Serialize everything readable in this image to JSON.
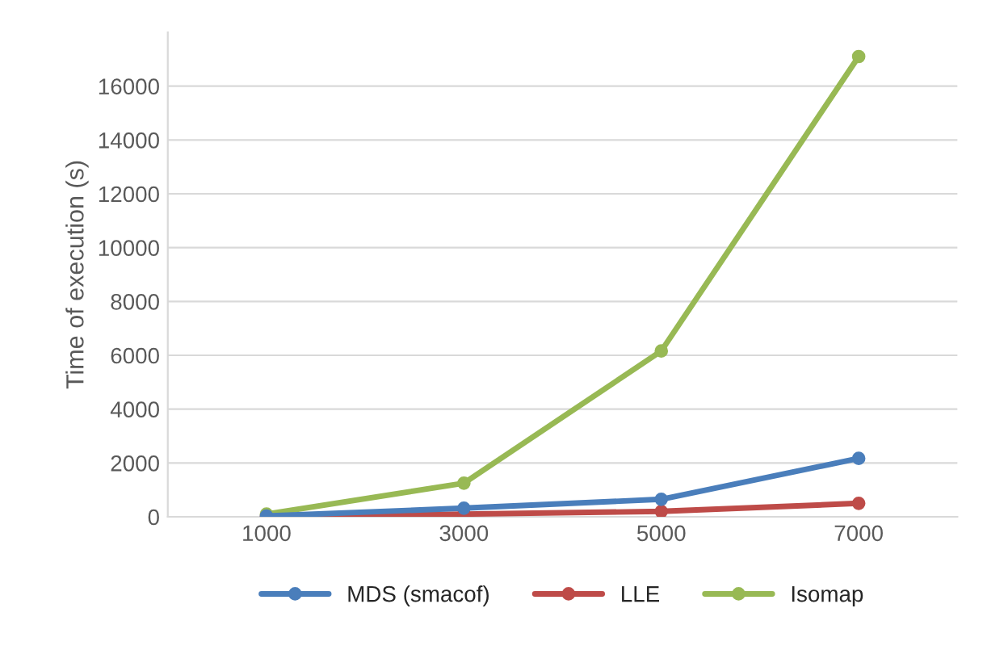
{
  "chart_data": {
    "type": "line",
    "ylabel": "Time of execution (s)",
    "categories": [
      "1000",
      "3000",
      "5000",
      "7000"
    ],
    "series": [
      {
        "name": "MDS (smacof)",
        "color": "#4a7ebb",
        "values": [
          30,
          320,
          650,
          2170
        ]
      },
      {
        "name": "LLE",
        "color": "#be4b48",
        "values": [
          0,
          100,
          200,
          500
        ]
      },
      {
        "name": "Isomap",
        "color": "#98b954",
        "values": [
          100,
          1250,
          6160,
          17100
        ]
      }
    ],
    "ylim": [
      0,
      18000
    ],
    "yticks": [
      0,
      2000,
      4000,
      6000,
      8000,
      10000,
      12000,
      14000,
      16000
    ],
    "grid": "y",
    "legend": "bottom",
    "marker": "circle",
    "line_style": "solid"
  }
}
